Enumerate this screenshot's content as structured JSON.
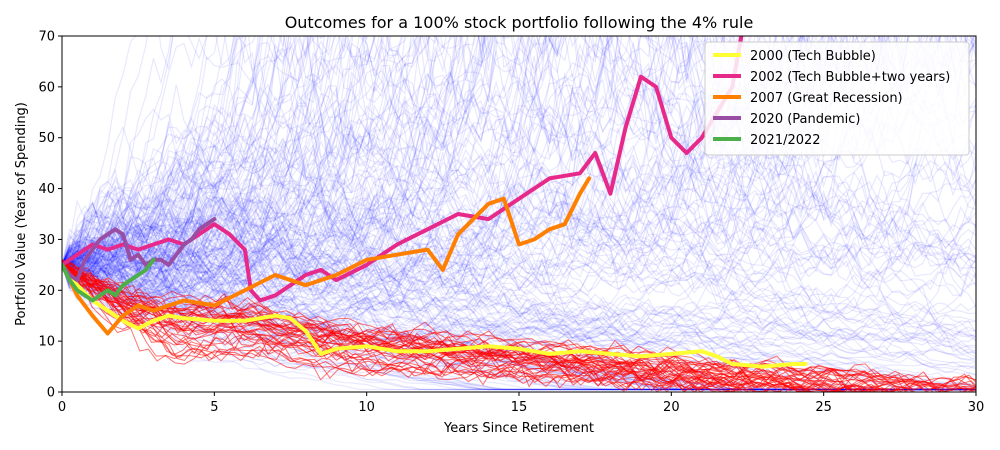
{
  "chart_data": {
    "type": "line",
    "title": "Outcomes for a 100% stock  portfolio following the 4% rule",
    "xlabel": "Years Since Retirement",
    "ylabel": "Portfolio Value (Years of Spending)",
    "xlim": [
      0,
      30
    ],
    "ylim": [
      0,
      70
    ],
    "xticks": [
      0,
      5,
      10,
      15,
      20,
      25,
      30
    ],
    "yticks": [
      0,
      10,
      20,
      30,
      40,
      50,
      60,
      70
    ],
    "grid": false,
    "legend_position": "top-right",
    "background_simulations": {
      "description_color_success": "#0000ff",
      "description_color_failure": "#ff0000",
      "start_value": 25
    },
    "series": [
      {
        "name": "2000 (Tech Bubble)",
        "color": "#ffff33",
        "x": [
          0,
          0.5,
          1,
          1.5,
          2,
          2.5,
          3,
          3.5,
          4,
          5,
          6,
          7,
          7.5,
          8,
          8.5,
          9,
          10,
          11,
          12,
          13,
          14,
          15,
          16,
          17,
          18,
          19,
          20,
          21,
          21.5,
          22,
          23,
          24,
          24.4
        ],
        "y": [
          25,
          21,
          18,
          16,
          14,
          12.5,
          14,
          15,
          14.5,
          14,
          14,
          15,
          14.5,
          12,
          7.5,
          8.5,
          9,
          8,
          8,
          8.5,
          9,
          8.5,
          7.5,
          8,
          7.5,
          7,
          7.5,
          8,
          7,
          5.5,
          5,
          5.5,
          5.5
        ]
      },
      {
        "name": "2002 (Tech Bubble+two years)",
        "color": "#e7298a",
        "x": [
          0,
          0.5,
          1,
          1.5,
          2,
          2.5,
          3,
          3.5,
          4,
          4.5,
          5,
          5.5,
          6,
          6.2,
          6.5,
          7,
          7.5,
          8,
          8.5,
          9,
          10,
          11,
          12,
          13,
          14,
          15,
          16,
          17,
          17.5,
          18,
          18.5,
          19,
          19.5,
          20,
          20.5,
          21,
          21.5,
          22,
          22.3
        ],
        "y": [
          25,
          27,
          29,
          28,
          29,
          28,
          29,
          30,
          29,
          31,
          33,
          31,
          28,
          20,
          18,
          19,
          21,
          23,
          24,
          22,
          25,
          29,
          32,
          35,
          34,
          38,
          42,
          43,
          47,
          39,
          52,
          62,
          60,
          50,
          47,
          50,
          55,
          60,
          70
        ]
      },
      {
        "name": "2007 (Great Recession)",
        "color": "#ff7f00",
        "x": [
          0,
          0.5,
          1,
          1.5,
          2,
          2.5,
          3,
          3.5,
          4,
          5,
          6,
          7,
          8,
          9,
          10,
          11,
          12,
          12.5,
          13,
          14,
          14.5,
          15,
          15.5,
          16,
          16.5,
          17,
          17.3
        ],
        "y": [
          25,
          19,
          15,
          11.5,
          15,
          17,
          16,
          17,
          18,
          17,
          20,
          23,
          21,
          23,
          26,
          27,
          28,
          24,
          31,
          37,
          38,
          29,
          30,
          32,
          33,
          39,
          42
        ]
      },
      {
        "name": "2020 (Pandemic)",
        "color": "#984ea3",
        "x": [
          0,
          0.25,
          0.5,
          0.75,
          1,
          1.25,
          1.5,
          1.75,
          2,
          2.25,
          2.5,
          2.75,
          3,
          3.25,
          3.5,
          3.75,
          4,
          4.25,
          4.5,
          4.75,
          5
        ],
        "y": [
          25,
          23,
          22,
          26,
          28,
          30,
          31,
          32,
          31,
          26,
          27,
          25,
          26,
          26,
          25,
          27,
          29,
          30,
          32,
          33,
          34
        ]
      },
      {
        "name": "2021/2022",
        "color": "#4daf4a",
        "x": [
          0,
          0.25,
          0.5,
          0.75,
          1,
          1.25,
          1.5,
          1.75,
          2,
          2.25,
          2.5,
          2.75,
          3
        ],
        "y": [
          25,
          22,
          20,
          19,
          18,
          19,
          20,
          19,
          21,
          22,
          23,
          24,
          26
        ]
      }
    ]
  }
}
